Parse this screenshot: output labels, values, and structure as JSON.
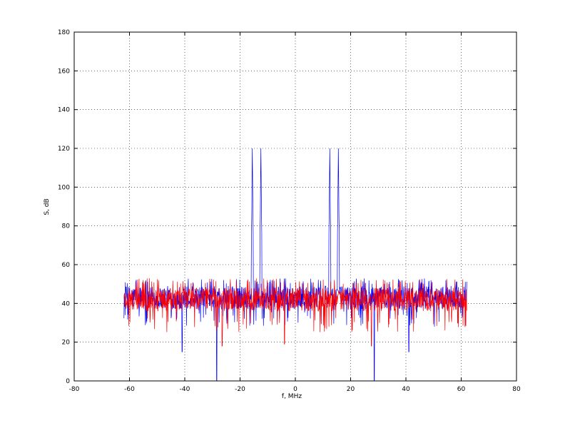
{
  "chart_data": {
    "type": "line",
    "title": "",
    "xlabel": "f, MHz",
    "ylabel": "S, dB",
    "xlim": [
      -80,
      80
    ],
    "ylim": [
      0,
      180
    ],
    "xticks": [
      -80,
      -60,
      -40,
      -20,
      0,
      20,
      40,
      60,
      80
    ],
    "yticks": [
      0,
      20,
      40,
      60,
      80,
      100,
      120,
      140,
      160,
      180
    ],
    "xtick_labels": [
      "-80",
      "-60",
      "-40",
      "-20",
      "0",
      "20",
      "40",
      "60",
      "80"
    ],
    "ytick_labels": [
      "0",
      "20",
      "40",
      "60",
      "80",
      "100",
      "120",
      "140",
      "160",
      "180"
    ],
    "grid": true,
    "legend": "none",
    "series": [
      {
        "color": "#0000ff",
        "x_range": [
          -62,
          62
        ],
        "noise_floor": 43,
        "noise_band": [
          28,
          53
        ],
        "peaks": [
          {
            "x": -15.6,
            "y": 120
          },
          {
            "x": -12.5,
            "y": 120
          },
          {
            "x": 12.5,
            "y": 120
          },
          {
            "x": 15.6,
            "y": 120
          }
        ],
        "dips": [
          {
            "x": -28.5,
            "y": 0
          },
          {
            "x": 28.5,
            "y": 0
          },
          {
            "x": -41,
            "y": 15
          },
          {
            "x": 41,
            "y": 15
          }
        ]
      },
      {
        "color": "#ff0000",
        "x_range": [
          -62,
          62
        ],
        "noise_floor": 42,
        "noise_band": [
          25,
          53
        ],
        "dips": [
          {
            "x": -26.5,
            "y": 18
          },
          {
            "x": 27.5,
            "y": 18
          },
          {
            "x": -4,
            "y": 19
          }
        ]
      }
    ]
  }
}
